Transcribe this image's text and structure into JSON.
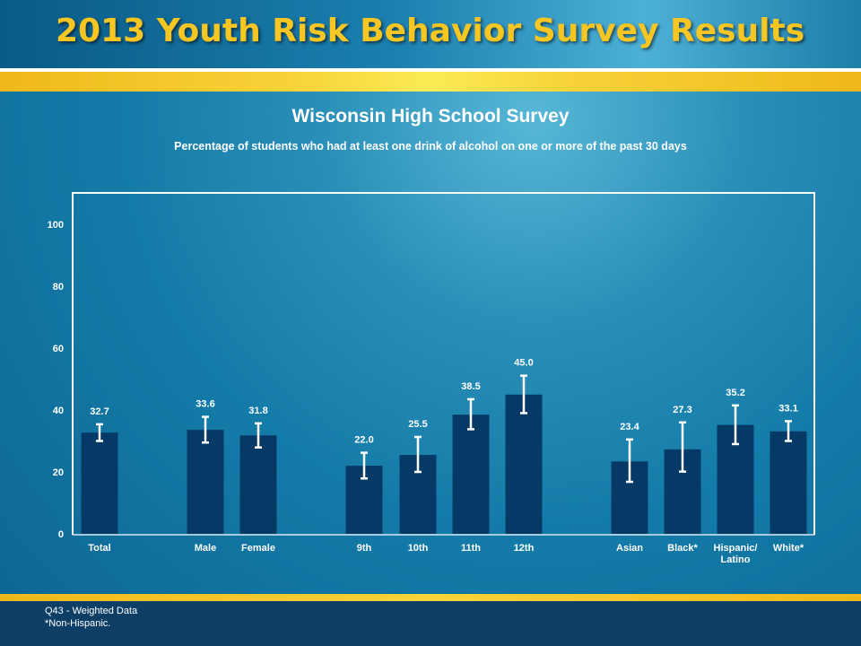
{
  "header": {
    "title": "2013 Youth Risk Behavior Survey Results"
  },
  "footer": {
    "line1": "Q43 - Weighted Data",
    "line2": "*Non-Hispanic."
  },
  "colors": {
    "bar": "#063a66",
    "title_gold": "#f7c623",
    "error_bar": "#ffffff",
    "plot_border": "#ffffff"
  },
  "chart_data": {
    "type": "bar",
    "title": "Wisconsin High School Survey",
    "subtitle": "Percentage of students who had at least one drink of alcohol on one or more of the past 30 days",
    "xlabel": "",
    "ylabel": "",
    "ylim": [
      0,
      100
    ],
    "yticks": [
      0,
      20,
      40,
      60,
      80,
      100
    ],
    "grid": false,
    "categories": [
      "Total",
      "Male",
      "Female",
      "9th",
      "10th",
      "11th",
      "12th",
      "Asian",
      "Black*",
      "Hispanic/ Latino",
      "White*"
    ],
    "values": [
      32.7,
      33.6,
      31.8,
      22.0,
      25.5,
      38.5,
      45.0,
      23.4,
      27.3,
      35.2,
      33.1
    ],
    "value_labels": [
      "32.7",
      "33.6",
      "31.8",
      "22.0",
      "25.5",
      "38.5",
      "45.0",
      "23.4",
      "27.3",
      "35.2",
      "33.1"
    ],
    "ci_lower": [
      30.0,
      29.5,
      27.9,
      17.9,
      20.0,
      33.8,
      39.0,
      16.8,
      20.1,
      29.0,
      30.0
    ],
    "ci_upper": [
      35.4,
      37.8,
      35.7,
      26.2,
      31.3,
      43.5,
      51.1,
      30.5,
      36.0,
      41.5,
      36.4
    ],
    "groups": [
      [
        0
      ],
      [
        1,
        2
      ],
      [
        3,
        4,
        5,
        6
      ],
      [
        7,
        8,
        9,
        10
      ]
    ]
  }
}
